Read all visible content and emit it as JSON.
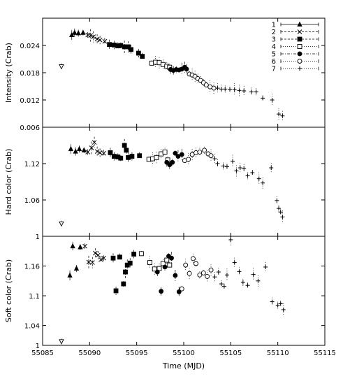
{
  "chart_data": {
    "type": "scatter",
    "xlabel": "Time (MJD)",
    "xlim": [
      55085,
      55115
    ],
    "x_ticks": [
      "55085",
      "55090",
      "55095",
      "55100",
      "55105",
      "55110",
      "55115"
    ],
    "legend_position": "top-right",
    "series_styles": [
      {
        "name": "1",
        "marker": "triangle-up",
        "line": "solid"
      },
      {
        "name": "2",
        "marker": "x",
        "line": "dashed"
      },
      {
        "name": "3",
        "marker": "square-filled",
        "line": "dashed"
      },
      {
        "name": "4",
        "marker": "square-open",
        "line": "dotted"
      },
      {
        "name": "5",
        "marker": "circle-filled",
        "line": "dash-dot"
      },
      {
        "name": "6",
        "marker": "circle-open",
        "line": "dotted"
      },
      {
        "name": "7",
        "marker": "plus",
        "line": "dotted"
      },
      {
        "name": "",
        "marker": "triangle-down-open",
        "line": "none"
      }
    ],
    "panels": [
      {
        "ylabel": "Intensity (Crab)",
        "ylim": [
          0.006,
          0.03
        ],
        "y_ticks": [
          "0.006",
          "0.012",
          "0.018",
          "0.024"
        ],
        "series": [
          {
            "name": "",
            "points": [
              [
                55087,
                0.0194
              ]
            ]
          },
          {
            "name": "1",
            "points": [
              [
                55088.1,
                0.0263
              ],
              [
                55088.4,
                0.0268
              ],
              [
                55088.8,
                0.0267
              ],
              [
                55089.3,
                0.0268
              ]
            ]
          },
          {
            "name": "2",
            "points": [
              [
                55089.8,
                0.0263
              ],
              [
                55090.1,
                0.0262
              ],
              [
                55090.4,
                0.0259
              ],
              [
                55090.8,
                0.0254
              ],
              [
                55091.1,
                0.0252
              ],
              [
                55091.6,
                0.0249
              ]
            ]
          },
          {
            "name": "3",
            "points": [
              [
                55092.1,
                0.0242
              ],
              [
                55092.6,
                0.0241
              ],
              [
                55093.0,
                0.0239
              ],
              [
                55093.3,
                0.024
              ],
              [
                55093.7,
                0.0237
              ],
              [
                55094.1,
                0.0237
              ],
              [
                55094.4,
                0.0231
              ],
              [
                55095.2,
                0.0223
              ],
              [
                55095.6,
                0.0216
              ]
            ]
          },
          {
            "name": "4",
            "points": [
              [
                55096.6,
                0.0201
              ],
              [
                55097.0,
                0.0203
              ],
              [
                55097.4,
                0.0202
              ],
              [
                55097.8,
                0.0198
              ],
              [
                55098.2,
                0.0194
              ],
              [
                55098.5,
                0.0192
              ]
            ]
          },
          {
            "name": "5",
            "points": [
              [
                55098.6,
                0.0187
              ],
              [
                55098.9,
                0.0185
              ],
              [
                55099.2,
                0.0187
              ],
              [
                55099.5,
                0.0186
              ],
              [
                55099.8,
                0.0188
              ],
              [
                55100.1,
                0.0192
              ],
              [
                55100.3,
                0.0188
              ]
            ]
          },
          {
            "name": "6",
            "points": [
              [
                55100.6,
                0.0177
              ],
              [
                55100.9,
                0.0175
              ],
              [
                55101.2,
                0.0172
              ],
              [
                55101.5,
                0.0167
              ],
              [
                55101.8,
                0.0163
              ],
              [
                55102.1,
                0.0158
              ],
              [
                55102.4,
                0.0153
              ],
              [
                55102.8,
                0.0149
              ],
              [
                55103.2,
                0.0146
              ]
            ]
          },
          {
            "name": "7",
            "points": [
              [
                55103.6,
                0.0146
              ],
              [
                55104.0,
                0.0144
              ],
              [
                55104.4,
                0.0144
              ],
              [
                55104.9,
                0.0143
              ],
              [
                55105.4,
                0.0143
              ],
              [
                55105.9,
                0.0141
              ],
              [
                55106.4,
                0.014
              ],
              [
                55107.2,
                0.0138
              ],
              [
                55107.7,
                0.0138
              ],
              [
                55108.4,
                0.0124
              ],
              [
                55109.4,
                0.012
              ],
              [
                55110.1,
                0.0089
              ],
              [
                55110.5,
                0.0085
              ]
            ]
          }
        ]
      },
      {
        "ylabel": "Hard color (Crab)",
        "ylim": [
          1.0,
          1.18
        ],
        "y_ticks": [
          "1",
          "1.06",
          "1.12"
        ],
        "series": [
          {
            "name": "",
            "points": [
              [
                55087,
                1.021
              ]
            ]
          },
          {
            "name": "1",
            "points": [
              [
                55088.0,
                1.144
              ],
              [
                55088.5,
                1.14
              ],
              [
                55088.9,
                1.144
              ],
              [
                55089.4,
                1.142
              ]
            ]
          },
          {
            "name": "2",
            "points": [
              [
                55089.8,
                1.139
              ],
              [
                55090.2,
                1.146
              ],
              [
                55090.5,
                1.155
              ],
              [
                55090.8,
                1.14
              ],
              [
                55091.1,
                1.138
              ],
              [
                55091.5,
                1.137
              ]
            ]
          },
          {
            "name": "3",
            "points": [
              [
                55092.2,
                1.138
              ],
              [
                55092.6,
                1.132
              ],
              [
                55093.0,
                1.131
              ],
              [
                55093.3,
                1.129
              ],
              [
                55093.7,
                1.15
              ],
              [
                55093.9,
                1.142
              ],
              [
                55094.1,
                1.13
              ],
              [
                55094.5,
                1.132
              ],
              [
                55095.3,
                1.133
              ]
            ]
          },
          {
            "name": "4",
            "points": [
              [
                55096.3,
                1.127
              ],
              [
                55096.7,
                1.128
              ],
              [
                55097.1,
                1.13
              ],
              [
                55097.6,
                1.136
              ],
              [
                55098.0,
                1.139
              ],
              [
                55098.3,
                1.126
              ]
            ]
          },
          {
            "name": "5",
            "points": [
              [
                55098.2,
                1.122
              ],
              [
                55098.5,
                1.118
              ],
              [
                55098.8,
                1.122
              ],
              [
                55099.1,
                1.137
              ],
              [
                55099.4,
                1.132
              ],
              [
                55099.8,
                1.135
              ]
            ]
          },
          {
            "name": "6",
            "points": [
              [
                55100.1,
                1.125
              ],
              [
                55100.5,
                1.127
              ],
              [
                55100.9,
                1.135
              ],
              [
                55101.3,
                1.138
              ],
              [
                55101.7,
                1.139
              ],
              [
                55102.2,
                1.142
              ],
              [
                55102.6,
                1.136
              ],
              [
                55102.9,
                1.133
              ]
            ]
          },
          {
            "name": "7",
            "points": [
              [
                55103.3,
                1.128
              ],
              [
                55103.6,
                1.12
              ],
              [
                55104.2,
                1.116
              ],
              [
                55104.6,
                1.115
              ],
              [
                55105.2,
                1.124
              ],
              [
                55105.6,
                1.108
              ],
              [
                55106.0,
                1.113
              ],
              [
                55106.4,
                1.112
              ],
              [
                55106.8,
                1.1
              ],
              [
                55107.3,
                1.105
              ],
              [
                55108.0,
                1.095
              ],
              [
                55108.4,
                1.088
              ],
              [
                55109.3,
                1.113
              ],
              [
                55109.9,
                1.059
              ],
              [
                55110.1,
                1.046
              ],
              [
                55110.3,
                1.04
              ],
              [
                55110.5,
                1.032
              ]
            ]
          }
        ]
      },
      {
        "ylabel": "Soft color (Crab)",
        "ylim": [
          1.0,
          1.22
        ],
        "y_ticks": [
          "1",
          "1.04",
          "1.1",
          "1.16"
        ],
        "series": [
          {
            "name": "",
            "points": [
              [
                55087,
                1.008
              ]
            ]
          },
          {
            "name": "1",
            "points": [
              [
                55087.9,
                1.141
              ],
              [
                55088.2,
                1.2
              ],
              [
                55088.6,
                1.155
              ],
              [
                55089.0,
                1.198
              ]
            ]
          },
          {
            "name": "2",
            "points": [
              [
                55089.5,
                1.2
              ],
              [
                55089.9,
                1.168
              ],
              [
                55090.3,
                1.167
              ],
              [
                55090.6,
                1.186
              ],
              [
                55090.9,
                1.182
              ],
              [
                55091.2,
                1.173
              ],
              [
                55091.5,
                1.176
              ]
            ]
          },
          {
            "name": "3",
            "points": [
              [
                55092.5,
                1.176
              ],
              [
                55092.8,
                1.11
              ],
              [
                55093.2,
                1.178
              ],
              [
                55093.6,
                1.124
              ],
              [
                55093.8,
                1.148
              ],
              [
                55094.0,
                1.162
              ],
              [
                55094.3,
                1.166
              ],
              [
                55094.7,
                1.184
              ]
            ]
          },
          {
            "name": "4",
            "points": [
              [
                55095.5,
                1.185
              ],
              [
                55096.4,
                1.167
              ],
              [
                55096.9,
                1.154
              ],
              [
                55097.4,
                1.155
              ],
              [
                55097.8,
                1.165
              ],
              [
                55098.2,
                1.172
              ],
              [
                55098.5,
                1.162
              ]
            ]
          },
          {
            "name": "5",
            "points": [
              [
                55097.2,
                1.148
              ],
              [
                55097.6,
                1.109
              ],
              [
                55098.0,
                1.158
              ],
              [
                55098.4,
                1.18
              ],
              [
                55098.7,
                1.176
              ],
              [
                55099.1,
                1.141
              ],
              [
                55099.5,
                1.108
              ]
            ]
          },
          {
            "name": "6",
            "points": [
              [
                55099.8,
                1.114
              ],
              [
                55100.2,
                1.162
              ],
              [
                55100.6,
                1.145
              ],
              [
                55101.0,
                1.175
              ],
              [
                55101.3,
                1.165
              ],
              [
                55101.7,
                1.142
              ],
              [
                55102.1,
                1.146
              ],
              [
                55102.5,
                1.139
              ],
              [
                55102.9,
                1.152
              ]
            ]
          },
          {
            "name": "7",
            "points": [
              [
                55103.3,
                1.138
              ],
              [
                55103.7,
                1.148
              ],
              [
                55104.0,
                1.124
              ],
              [
                55104.3,
                1.119
              ],
              [
                55104.6,
                1.142
              ],
              [
                55105.0,
                1.213
              ],
              [
                55105.4,
                1.167
              ],
              [
                55105.9,
                1.149
              ],
              [
                55106.3,
                1.127
              ],
              [
                55106.8,
                1.121
              ],
              [
                55107.4,
                1.143
              ],
              [
                55107.9,
                1.13
              ],
              [
                55108.7,
                1.158
              ],
              [
                55109.4,
                1.088
              ],
              [
                55110.0,
                1.081
              ],
              [
                55110.3,
                1.084
              ],
              [
                55110.6,
                1.072
              ]
            ]
          }
        ]
      }
    ]
  }
}
